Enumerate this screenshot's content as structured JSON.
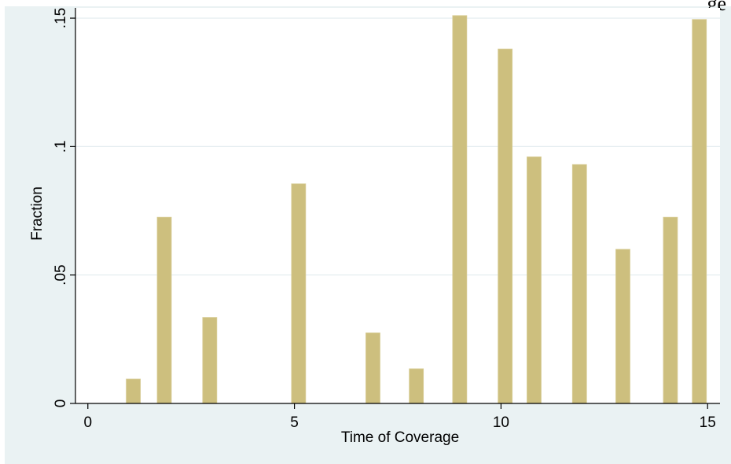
{
  "cropped_header_text": "ge   ",
  "chart_data": {
    "type": "bar",
    "xlabel": "Time of Coverage",
    "ylabel": "Fraction",
    "xlim": [
      -0.3,
      15.3
    ],
    "ylim": [
      0,
      0.154
    ],
    "x_ticks": [
      0,
      5,
      10,
      15
    ],
    "y_ticks": [
      0,
      0.05,
      0.1,
      0.15
    ],
    "x_tick_labels": [
      "0",
      "5",
      "10",
      "15"
    ],
    "y_tick_labels": [
      "0",
      ".05",
      ".1",
      ".15"
    ],
    "grid": "horizontal",
    "bar_color": "#cdbf7e",
    "bars": [
      {
        "x": 1.1,
        "value": 0.0095
      },
      {
        "x": 1.85,
        "value": 0.0725
      },
      {
        "x": 2.95,
        "value": 0.0335
      },
      {
        "x": 5.1,
        "value": 0.0855
      },
      {
        "x": 6.9,
        "value": 0.0275
      },
      {
        "x": 7.95,
        "value": 0.0135
      },
      {
        "x": 9.0,
        "value": 0.151
      },
      {
        "x": 10.1,
        "value": 0.138
      },
      {
        "x": 10.8,
        "value": 0.096
      },
      {
        "x": 11.9,
        "value": 0.093
      },
      {
        "x": 12.95,
        "value": 0.06
      },
      {
        "x": 14.1,
        "value": 0.0725
      },
      {
        "x": 14.8,
        "value": 0.1495
      }
    ]
  }
}
